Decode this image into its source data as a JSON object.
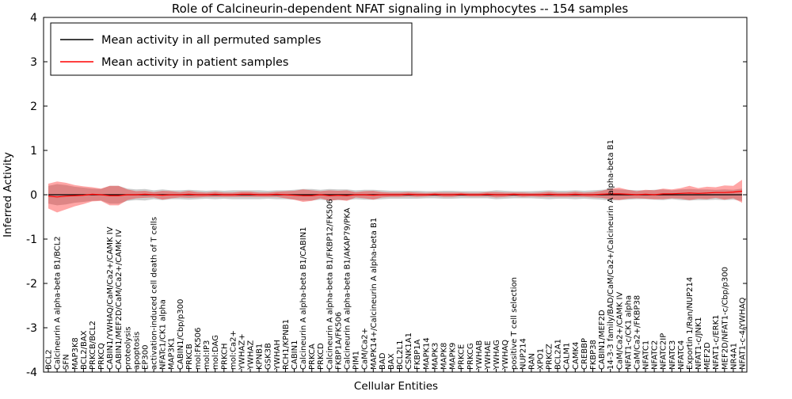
{
  "title": "Role of Calcineurin-dependent NFAT signaling in lymphocytes -- 154 samples",
  "xlabel": "Cellular Entities",
  "ylabel": "Inferred Activity",
  "legend": {
    "items": [
      {
        "label": "Mean activity in all permuted samples",
        "color": "#000000"
      },
      {
        "label": "Mean activity in patient samples",
        "color": "#ff0000"
      }
    ]
  },
  "colors": {
    "axis": "#000000",
    "permuted_line": "#000000",
    "permuted_band": "#808080",
    "patient_line": "#ff0000",
    "patient_band": "#ff0000",
    "background": "#ffffff"
  },
  "chart_data": {
    "type": "line",
    "title": "Role of Calcineurin-dependent NFAT signaling in lymphocytes -- 154 samples",
    "xlabel": "Cellular Entities",
    "ylabel": "Inferred Activity",
    "ylim": [
      -4,
      4
    ],
    "yticks": [
      -4,
      -3,
      -2,
      -1,
      0,
      1,
      2,
      3,
      4
    ],
    "grid": false,
    "legend_position": "upper left",
    "categories": [
      "BCL2",
      "Calcineurin A alpha-beta B1/BCL2",
      "SFN",
      "MAP3K8",
      "BCL2/BAX",
      "PRKCB/BCL2",
      "PRKCQ",
      "CABIN1/YWHAQ/CaM/Ca2+/CAMK IV",
      "CABIN1/MEF2D/CaM/Ca2+/CAMK IV",
      "proteolysis",
      "apoptosis",
      "EP300",
      "activation-induced cell death of T cells",
      "NFATc1/CK1 alpha",
      "MAP3K1",
      "CABIN1/Cbp/p300",
      "PRKCB",
      "mol:FK506",
      "mol:IP3",
      "mol:DAG",
      "PRKCH",
      "mol:Ca2+",
      "YWHAZ+",
      "YWHAZ",
      "KPNB1",
      "GSK3B",
      "YWHAH",
      "RCH1/KPNB1",
      "CABIN1",
      "Calcineurin A alpha-beta B1/CABIN1",
      "PRKCA",
      "PRKCD",
      "Calcineurin A alpha-beta B1/FKBP12/FK506",
      "FKBP1A/FK506",
      "Calcineurin A alpha-beta B1/AKAP79/PKA",
      "PIM1",
      "CaM/Ca2+",
      "MAPK14+/Calcineurin A alpha-beta B1",
      "BAD",
      "BAX",
      "BCL2L1",
      "CSNK1A1",
      "FKBP1A",
      "MAPK14",
      "MAPK3",
      "MAPK8",
      "MAPK9",
      "PRKCE",
      "PRKCG",
      "YWHAB",
      "YWHAE",
      "YWHAG",
      "YWHAQ",
      "positive T cell selection",
      "NUP214",
      "RAN",
      "XPO1",
      "PRKCZ",
      "BCL2A1",
      "CALM1",
      "CAMK4",
      "CREBBP",
      "FKBP38",
      "CABIN1/MEF2D",
      "14-3-3 family/BAD/CaM/Ca2+/Calcineurin A alpha-beta B1",
      "CaM/Ca2+/CAMK IV",
      "NFAT1-c/CK1 alpha",
      "CaM/Ca2+/FKBP38",
      "NFATC1",
      "NFATC2",
      "NFATC2IP",
      "NFATC3",
      "NFATC4",
      "Exportin 1/Ran/NUP214",
      "NFAT1-c/JNK1",
      "MEF2D",
      "NFAT1-c/ERK1",
      "MEF2D/NFAT1-c/Cbp/p300",
      "NR4A1",
      "NFAT1-c-4/YWHAQ"
    ],
    "series": [
      {
        "name": "Mean activity in all permuted samples",
        "color": "#000000",
        "band_color": "#808080",
        "values": [
          0,
          0,
          0,
          0,
          0,
          0,
          0,
          0,
          0,
          0,
          0,
          0,
          0,
          0,
          0,
          0,
          0,
          0,
          0,
          0,
          0,
          0,
          0,
          0,
          0,
          0,
          0,
          0,
          0,
          0,
          0,
          0,
          0,
          0,
          0,
          0,
          0,
          0,
          0,
          0,
          0,
          0,
          0,
          0,
          0,
          0,
          0,
          0,
          0,
          0,
          0,
          0,
          0,
          0,
          0,
          0,
          0,
          0,
          0,
          0,
          0,
          0,
          0,
          0,
          0,
          0,
          0,
          0,
          0,
          0,
          0,
          0,
          0,
          0,
          0,
          0,
          0,
          0,
          0,
          0
        ],
        "band_halfwidth": [
          0.2,
          0.24,
          0.22,
          0.18,
          0.16,
          0.14,
          0.13,
          0.2,
          0.2,
          0.14,
          0.12,
          0.13,
          0.1,
          0.12,
          0.1,
          0.1,
          0.11,
          0.1,
          0.09,
          0.1,
          0.09,
          0.1,
          0.1,
          0.1,
          0.1,
          0.09,
          0.1,
          0.1,
          0.11,
          0.13,
          0.13,
          0.11,
          0.13,
          0.12,
          0.12,
          0.1,
          0.11,
          0.11,
          0.1,
          0.09,
          0.09,
          0.09,
          0.09,
          0.08,
          0.08,
          0.09,
          0.09,
          0.08,
          0.08,
          0.08,
          0.08,
          0.1,
          0.09,
          0.08,
          0.08,
          0.08,
          0.09,
          0.1,
          0.09,
          0.09,
          0.1,
          0.09,
          0.1,
          0.11,
          0.13,
          0.12,
          0.11,
          0.1,
          0.1,
          0.11,
          0.12,
          0.1,
          0.12,
          0.13,
          0.12,
          0.12,
          0.11,
          0.12,
          0.11,
          0.14
        ]
      },
      {
        "name": "Mean activity in patient samples",
        "color": "#ff0000",
        "band_color": "#ff0000",
        "values": [
          -0.03,
          -0.05,
          -0.03,
          -0.02,
          -0.01,
          0.01,
          0,
          -0.02,
          -0.02,
          0,
          0,
          0.01,
          0,
          -0.01,
          0,
          0,
          0.01,
          0,
          0,
          0.01,
          0,
          0,
          0.01,
          0.01,
          0,
          0,
          0.01,
          0,
          -0.01,
          -0.02,
          -0.02,
          0,
          -0.02,
          -0.01,
          -0.02,
          0,
          0,
          -0.01,
          0,
          0,
          0,
          0.01,
          0,
          0,
          0.01,
          0,
          0,
          0.01,
          0,
          0,
          0.01,
          0,
          0,
          0.01,
          0,
          0,
          0,
          0.01,
          0,
          0,
          0.01,
          0,
          0,
          0.01,
          0.02,
          0.02,
          0.01,
          0,
          0.01,
          0,
          0.02,
          0.02,
          0.03,
          0.04,
          0.03,
          0.04,
          0.05,
          0.05,
          0.06,
          0.08
        ],
        "band_halfwidth": [
          0.28,
          0.35,
          0.3,
          0.24,
          0.2,
          0.16,
          0.14,
          0.22,
          0.22,
          0.12,
          0.08,
          0.08,
          0.06,
          0.1,
          0.08,
          0.06,
          0.08,
          0.06,
          0.05,
          0.06,
          0.05,
          0.05,
          0.06,
          0.06,
          0.05,
          0.05,
          0.06,
          0.08,
          0.1,
          0.14,
          0.12,
          0.08,
          0.12,
          0.1,
          0.12,
          0.06,
          0.08,
          0.1,
          0.06,
          0.05,
          0.05,
          0.05,
          0.05,
          0.04,
          0.04,
          0.05,
          0.05,
          0.04,
          0.04,
          0.04,
          0.05,
          0.06,
          0.05,
          0.04,
          0.05,
          0.04,
          0.05,
          0.06,
          0.05,
          0.05,
          0.06,
          0.05,
          0.06,
          0.08,
          0.12,
          0.14,
          0.1,
          0.08,
          0.1,
          0.1,
          0.12,
          0.1,
          0.12,
          0.16,
          0.12,
          0.14,
          0.12,
          0.16,
          0.14,
          0.26
        ]
      }
    ]
  }
}
